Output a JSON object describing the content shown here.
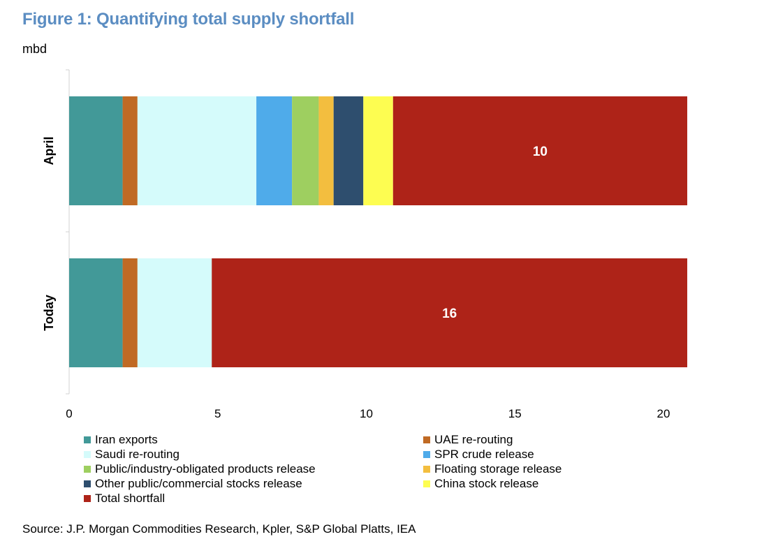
{
  "title": "Figure 1: Quantifying total supply shortfall",
  "unit_label": "mbd",
  "source": "Source: J.P. Morgan Commodities Research, Kpler, S&P Global Platts, IEA",
  "chart_data": {
    "type": "bar",
    "orientation": "horizontal",
    "stacked": true,
    "categories": [
      "April",
      "Today"
    ],
    "series": [
      {
        "name": "Iran exports",
        "color": "#429998",
        "values": [
          1.8,
          1.8
        ]
      },
      {
        "name": "UAE re-routing",
        "color": "#c06a24",
        "values": [
          0.5,
          0.5
        ]
      },
      {
        "name": "Saudi re-routing",
        "color": "#d5fbfb",
        "values": [
          4.0,
          2.5
        ]
      },
      {
        "name": "SPR crude release",
        "color": "#4fabea",
        "values": [
          1.2,
          0
        ]
      },
      {
        "name": "Public/industry-obligated products release",
        "color": "#9ecf60",
        "values": [
          0.9,
          0
        ]
      },
      {
        "name": "Floating storage release",
        "color": "#f3be3f",
        "values": [
          0.5,
          0
        ]
      },
      {
        "name": "Other public/commercial stocks release",
        "color": "#2e4e6e",
        "values": [
          1.0,
          0
        ]
      },
      {
        "name": "China stock release",
        "color": "#fdfd51",
        "values": [
          1.0,
          0
        ]
      },
      {
        "name": "Total shortfall",
        "color": "#ae2318",
        "values": [
          9.9,
          16.0
        ]
      }
    ],
    "data_labels": [
      {
        "category": "April",
        "series": "Total shortfall",
        "text": "10"
      },
      {
        "category": "Today",
        "series": "Total shortfall",
        "text": "16"
      }
    ],
    "xlim": [
      0,
      20
    ],
    "xticks": [
      "0",
      "5",
      "10",
      "15",
      "20"
    ],
    "xlabel": "",
    "ylabel": "mbd",
    "grid": false,
    "legend_position": "bottom"
  }
}
